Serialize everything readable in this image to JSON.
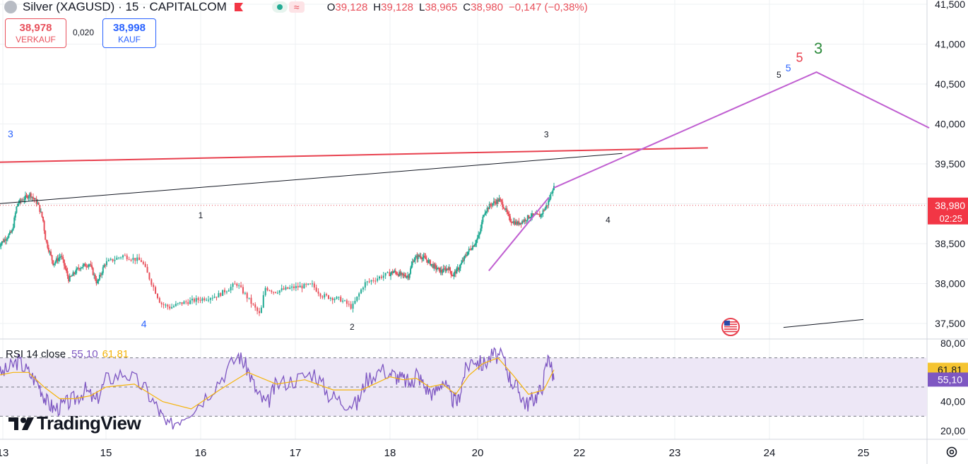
{
  "header": {
    "title": "Silver (XAGUSD) · 15 · CAPITALCOM",
    "ohlc": [
      {
        "k": "O",
        "v": "39,128"
      },
      {
        "k": "H",
        "v": "39,128"
      },
      {
        "k": "L",
        "v": "38,965"
      },
      {
        "k": "C",
        "v": "38,980"
      },
      {
        "k": "",
        "v": "−0,147 (−0,38%)"
      }
    ]
  },
  "trade": {
    "sell_price": "38,978",
    "sell_label": "VERKAUF",
    "spread": "0,020",
    "buy_price": "38,998",
    "buy_label": "KAUF"
  },
  "price_tag": {
    "value": "38,980",
    "countdown": "02:25"
  },
  "rsi": {
    "label": "RSI 14 close",
    "value": "55,10",
    "ma": "61,81"
  },
  "brand": {
    "name": "TradingView"
  },
  "colors": {
    "up": "#22ab94",
    "down": "#e8505b",
    "rsi": "#7e57c2",
    "rsi_ma": "#f5b40a",
    "forecast": "#c05fd1",
    "resistance": "#e8404e"
  },
  "icons": [
    "silver-coin-icon",
    "red-flag-icon",
    "market-open-icon",
    "wave-icon",
    "us-flag-icon",
    "settings-icon",
    "tradingview-logo-icon"
  ],
  "chart_data": {
    "type": "candlestick",
    "x_ticks": [
      {
        "label": "13",
        "x": 13
      },
      {
        "label": "15",
        "x": 15
      },
      {
        "label": "16",
        "x": 16
      },
      {
        "label": "17",
        "x": 17
      },
      {
        "label": "18",
        "x": 18
      },
      {
        "label": "20",
        "x": 20
      },
      {
        "label": "22",
        "x": 22
      },
      {
        "label": "23",
        "x": 23
      },
      {
        "label": "24",
        "x": 24
      },
      {
        "label": "25",
        "x": 25
      }
    ],
    "y_ticks": [
      "37,500",
      "38,000",
      "38,500",
      "39,000",
      "39,500",
      "40,000",
      "40,500",
      "41,000",
      "41,500"
    ],
    "y_tick_values": [
      37.5,
      38.0,
      38.5,
      39.0,
      39.5,
      40.0,
      40.5,
      41.0,
      41.5
    ],
    "price_path": [
      [
        12.9,
        38.45
      ],
      [
        13.05,
        38.55
      ],
      [
        13.2,
        38.65
      ],
      [
        13.3,
        39.0
      ],
      [
        13.4,
        39.05
      ],
      [
        13.55,
        39.12
      ],
      [
        13.7,
        39.0
      ],
      [
        13.8,
        38.8
      ],
      [
        13.85,
        38.55
      ],
      [
        14.0,
        38.25
      ],
      [
        14.15,
        38.35
      ],
      [
        14.3,
        38.05
      ],
      [
        14.5,
        38.2
      ],
      [
        14.7,
        38.25
      ],
      [
        14.85,
        38.0
      ],
      [
        15.0,
        38.25
      ],
      [
        15.2,
        38.35
      ],
      [
        15.4,
        38.28
      ],
      [
        15.6,
        37.75
      ],
      [
        15.7,
        37.7
      ],
      [
        15.8,
        37.75
      ],
      [
        16.0,
        37.8
      ],
      [
        16.2,
        37.85
      ],
      [
        16.4,
        38.0
      ],
      [
        16.5,
        37.85
      ],
      [
        16.65,
        37.6
      ],
      [
        16.7,
        37.95
      ],
      [
        16.8,
        37.9
      ],
      [
        17.0,
        37.95
      ],
      [
        17.2,
        37.98
      ],
      [
        17.3,
        37.85
      ],
      [
        17.5,
        37.8
      ],
      [
        17.62,
        37.7
      ],
      [
        17.75,
        38.0
      ],
      [
        17.95,
        38.1
      ],
      [
        18.1,
        38.15
      ],
      [
        18.3,
        38.1
      ],
      [
        18.45,
        38.1
      ],
      [
        18.55,
        38.3
      ],
      [
        18.7,
        38.35
      ],
      [
        18.85,
        38.3
      ],
      [
        19.05,
        38.2
      ],
      [
        19.2,
        38.15
      ],
      [
        19.35,
        38.2
      ],
      [
        19.45,
        38.1
      ],
      [
        19.6,
        38.2
      ],
      [
        19.8,
        38.4
      ],
      [
        19.95,
        38.5
      ],
      [
        20.05,
        38.6
      ],
      [
        20.15,
        38.9
      ],
      [
        20.3,
        39.0
      ],
      [
        20.45,
        39.05
      ],
      [
        20.55,
        38.95
      ],
      [
        20.65,
        38.8
      ],
      [
        20.8,
        38.75
      ],
      [
        20.95,
        38.8
      ],
      [
        21.05,
        38.85
      ],
      [
        21.25,
        38.85
      ],
      [
        21.4,
        39.0
      ],
      [
        21.5,
        39.2
      ]
    ],
    "resistance_line": [
      [
        12.9,
        39.52
      ],
      [
        23.35,
        39.7
      ]
    ],
    "trend_line": [
      [
        12.9,
        39.0
      ],
      [
        22.45,
        39.63
      ]
    ],
    "support_line": [
      [
        20.22,
        38.16
      ],
      [
        21.4,
        39.08
      ]
    ],
    "forecast_line": [
      [
        21.5,
        39.2
      ],
      [
        24.5,
        40.65
      ],
      [
        25.7,
        39.95
      ]
    ],
    "future_line": [
      [
        24.15,
        37.45
      ],
      [
        25.0,
        37.55
      ]
    ],
    "last_price": 38.98,
    "wave_labels": [
      {
        "text": "3",
        "x": 13.15,
        "y": 39.83,
        "color": "#2962ff"
      },
      {
        "text": "4",
        "x": 15.4,
        "y": 37.45,
        "color": "#2962ff"
      },
      {
        "text": "1",
        "x": 16.0,
        "y": 38.82,
        "color": "#131722"
      },
      {
        "text": "2",
        "x": 17.6,
        "y": 37.42,
        "color": "#131722"
      },
      {
        "text": "3",
        "x": 21.35,
        "y": 39.83,
        "color": "#131722"
      },
      {
        "text": "4",
        "x": 22.3,
        "y": 38.76,
        "color": "#131722"
      },
      {
        "text": "5",
        "x": 24.1,
        "y": 40.58,
        "color": "#131722"
      },
      {
        "text": "5",
        "x": 24.2,
        "y": 40.66,
        "color": "#2962ff"
      },
      {
        "text": "5",
        "x": 24.32,
        "y": 40.78,
        "color": "#e8404e"
      },
      {
        "text": "3",
        "x": 24.52,
        "y": 40.88,
        "color": "#2e8b3d"
      }
    ],
    "rsi": {
      "ylim": [
        20,
        80
      ],
      "ticks": [
        "20,00",
        "40,00",
        "61,81",
        "55,10",
        "80,00"
      ],
      "tick_values": [
        20,
        40,
        80
      ],
      "band": [
        30,
        70
      ],
      "path": [
        [
          12.9,
          58
        ],
        [
          13.1,
          62
        ],
        [
          13.3,
          68
        ],
        [
          13.5,
          60
        ],
        [
          13.7,
          52
        ],
        [
          13.85,
          40
        ],
        [
          14.0,
          35
        ],
        [
          14.2,
          38
        ],
        [
          14.4,
          42
        ],
        [
          14.6,
          48
        ],
        [
          14.8,
          40
        ],
        [
          15.0,
          55
        ],
        [
          15.2,
          60
        ],
        [
          15.4,
          50
        ],
        [
          15.55,
          35
        ],
        [
          15.65,
          22
        ],
        [
          15.8,
          30
        ],
        [
          16.0,
          40
        ],
        [
          16.2,
          55
        ],
        [
          16.4,
          72
        ],
        [
          16.5,
          62
        ],
        [
          16.6,
          45
        ],
        [
          16.7,
          38
        ],
        [
          16.8,
          52
        ],
        [
          17.0,
          55
        ],
        [
          17.2,
          60
        ],
        [
          17.35,
          45
        ],
        [
          17.5,
          40
        ],
        [
          17.65,
          38
        ],
        [
          17.75,
          55
        ],
        [
          17.9,
          62
        ],
        [
          18.1,
          58
        ],
        [
          18.3,
          55
        ],
        [
          18.5,
          52
        ],
        [
          18.6,
          60
        ],
        [
          18.8,
          50
        ],
        [
          19.0,
          45
        ],
        [
          19.2,
          55
        ],
        [
          19.4,
          42
        ],
        [
          19.55,
          40
        ],
        [
          19.7,
          60
        ],
        [
          19.9,
          70
        ],
        [
          20.1,
          65
        ],
        [
          20.3,
          72
        ],
        [
          20.5,
          70
        ],
        [
          20.65,
          55
        ],
        [
          20.8,
          48
        ],
        [
          20.95,
          38
        ],
        [
          21.1,
          42
        ],
        [
          21.25,
          48
        ],
        [
          21.4,
          72
        ],
        [
          21.5,
          55
        ]
      ],
      "rsi_ma_path": [
        [
          12.9,
          58
        ],
        [
          13.2,
          60
        ],
        [
          13.5,
          60
        ],
        [
          13.8,
          50
        ],
        [
          14.1,
          42
        ],
        [
          14.4,
          42
        ],
        [
          14.7,
          44
        ],
        [
          15.0,
          50
        ],
        [
          15.3,
          52
        ],
        [
          15.6,
          40
        ],
        [
          15.9,
          35
        ],
        [
          16.2,
          48
        ],
        [
          16.5,
          60
        ],
        [
          16.8,
          52
        ],
        [
          17.1,
          55
        ],
        [
          17.4,
          48
        ],
        [
          17.7,
          48
        ],
        [
          18.0,
          57
        ],
        [
          18.3,
          55
        ],
        [
          18.6,
          56
        ],
        [
          18.9,
          50
        ],
        [
          19.2,
          52
        ],
        [
          19.5,
          45
        ],
        [
          19.8,
          58
        ],
        [
          20.1,
          66
        ],
        [
          20.4,
          70
        ],
        [
          20.7,
          58
        ],
        [
          21.0,
          45
        ],
        [
          21.3,
          48
        ],
        [
          21.5,
          61.81
        ]
      ],
      "rsi_value": 55.1,
      "rsi_ma_value": 61.81
    }
  }
}
